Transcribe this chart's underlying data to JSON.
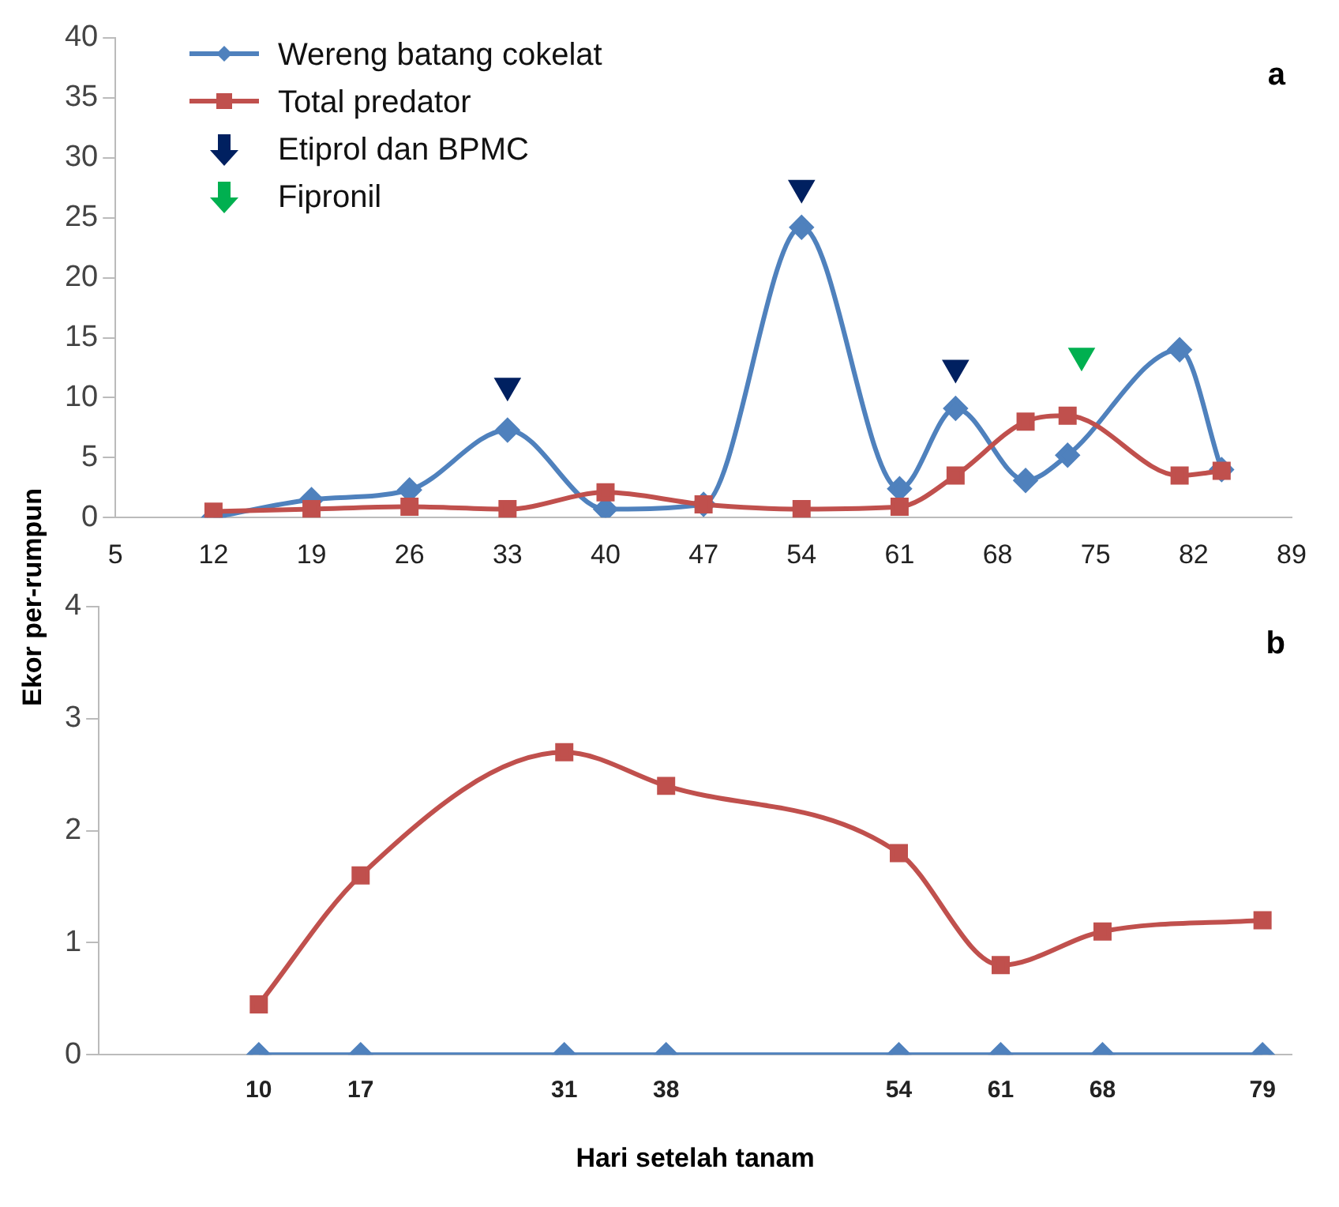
{
  "chart_data": [
    {
      "type": "line",
      "title": "a",
      "ylabel": "Ekor per-rumpun",
      "legend": "top left",
      "xlim": [
        5,
        89
      ],
      "xticks": [
        5,
        12,
        19,
        26,
        33,
        40,
        47,
        54,
        61,
        68,
        75,
        82,
        89
      ],
      "ylim": [
        0,
        40
      ],
      "yticks": [
        0,
        5,
        10,
        15,
        20,
        25,
        30,
        35,
        40
      ],
      "grid": false,
      "series": [
        {
          "name": "Wereng batang cokelat",
          "color": "#4f81bd",
          "marker": "diamond",
          "x": [
            12,
            19,
            26,
            33,
            40,
            47,
            54,
            61,
            65,
            70,
            73,
            81,
            84
          ],
          "values": [
            0,
            1.5,
            2.3,
            7.3,
            0.7,
            1.1,
            24.2,
            2.4,
            9.1,
            3.1,
            5.2,
            14,
            4
          ]
        },
        {
          "name": "Total predator",
          "color": "#c0504d",
          "marker": "square",
          "x": [
            12,
            19,
            26,
            33,
            40,
            47,
            54,
            61,
            65,
            70,
            73,
            81,
            84
          ],
          "values": [
            0.5,
            0.7,
            0.9,
            0.7,
            2.1,
            1.1,
            0.7,
            0.9,
            3.5,
            8,
            8.5,
            3.5,
            3.9
          ]
        },
        {
          "name": "Etiprol dan BPMC",
          "type": "scatter",
          "color": "#002060",
          "marker": "triangle",
          "x": [
            33,
            54,
            65
          ],
          "values": [
            11,
            27.5,
            12.5
          ]
        },
        {
          "name": "Fipronil",
          "type": "scatter",
          "color": "#00b050",
          "marker": "triangle",
          "x": [
            74
          ],
          "values": [
            13.5
          ]
        }
      ]
    },
    {
      "type": "line",
      "title": "b",
      "xlabel": "Hari setelah tanam",
      "xlim": [
        -1,
        81
      ],
      "xticks": [
        10,
        17,
        31,
        38,
        54,
        61,
        68,
        79
      ],
      "ylim": [
        0,
        4
      ],
      "yticks": [
        0,
        1,
        2,
        3,
        4
      ],
      "grid": false,
      "series": [
        {
          "color": "#c0504d",
          "marker": "square",
          "x": [
            10,
            17,
            31,
            38,
            54,
            61,
            68,
            79
          ],
          "values": [
            0.45,
            1.6,
            2.7,
            2.4,
            1.8,
            0.8,
            1.1,
            1.2
          ]
        },
        {
          "color": "#4f81bd",
          "marker": "diamond",
          "x": [
            10,
            17,
            31,
            38,
            54,
            61,
            68,
            79
          ],
          "values": [
            0,
            0,
            0,
            0,
            0,
            0,
            0,
            0
          ]
        }
      ]
    }
  ]
}
